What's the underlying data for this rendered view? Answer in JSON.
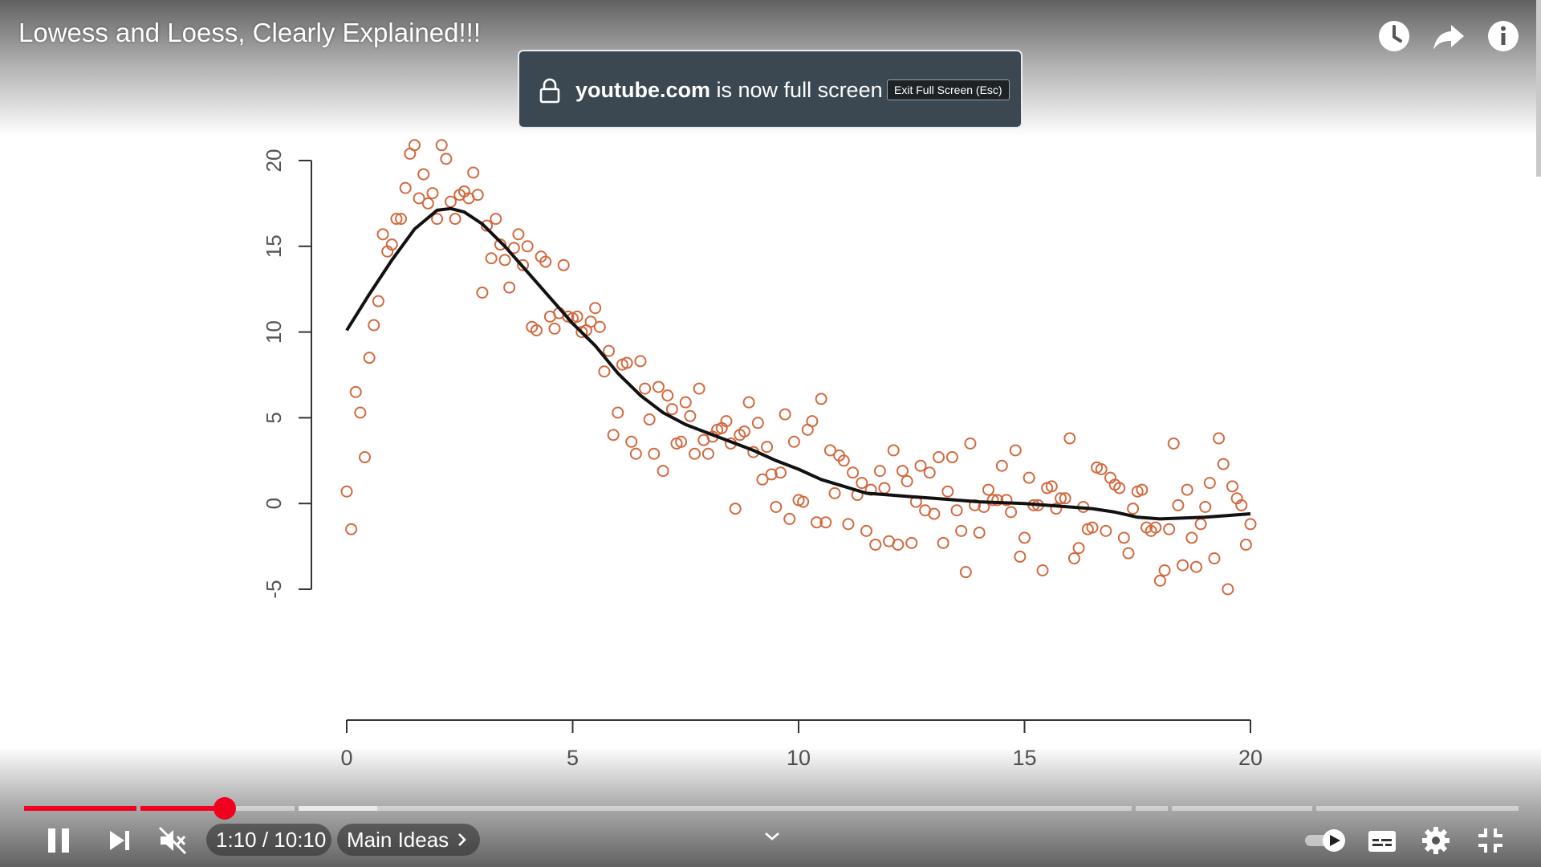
{
  "video": {
    "title": "Lowess and Loess, Clearly Explained!!!"
  },
  "top_icons": [
    "watch-later-icon",
    "share-icon",
    "info-icon"
  ],
  "fullscreen_toast": {
    "domain": "youtube.com",
    "message": " is now full screen",
    "exit_label": "Exit Full Screen (Esc)"
  },
  "controls": {
    "current_time": "1:10",
    "duration": "10:10",
    "time_display": "1:10 / 10:10",
    "chapter": "Main Ideas",
    "progress_fraction": 0.115,
    "autoplay": true
  },
  "colors": {
    "accent": "#f1001f",
    "points": "#d2693f",
    "curve": "#111111",
    "toast_bg": "#3b4852"
  },
  "chart_data": {
    "type": "scatter",
    "x_ticks": [
      0,
      5,
      10,
      15,
      20
    ],
    "y_ticks": [
      -5,
      0,
      5,
      10,
      15,
      20
    ],
    "x_tick_labels": [
      "0",
      "5",
      "10",
      "15",
      "20"
    ],
    "y_tick_labels": [
      "-5",
      "0",
      "5",
      "10",
      "15",
      "20"
    ],
    "xlim": [
      0,
      20
    ],
    "ylim": [
      -5,
      20
    ],
    "grid": false,
    "series": [
      {
        "points": [
          [
            0.0,
            0.7
          ],
          [
            0.1,
            -1.5
          ],
          [
            0.2,
            6.5
          ],
          [
            0.3,
            5.3
          ],
          [
            0.4,
            2.7
          ],
          [
            0.5,
            8.5
          ],
          [
            0.6,
            10.4
          ],
          [
            0.7,
            11.8
          ],
          [
            0.8,
            15.7
          ],
          [
            0.9,
            14.7
          ],
          [
            1.0,
            15.1
          ],
          [
            1.1,
            16.6
          ],
          [
            1.2,
            16.6
          ],
          [
            1.3,
            18.4
          ],
          [
            1.4,
            20.4
          ],
          [
            1.5,
            20.9
          ],
          [
            1.6,
            17.8
          ],
          [
            1.7,
            19.2
          ],
          [
            1.8,
            17.5
          ],
          [
            1.9,
            18.1
          ],
          [
            2.0,
            16.6
          ],
          [
            2.1,
            20.9
          ],
          [
            2.2,
            20.1
          ],
          [
            2.3,
            17.6
          ],
          [
            2.4,
            16.6
          ],
          [
            2.5,
            18.0
          ],
          [
            2.6,
            18.2
          ],
          [
            2.7,
            17.8
          ],
          [
            2.8,
            19.3
          ],
          [
            2.9,
            18.0
          ],
          [
            3.0,
            12.3
          ],
          [
            3.1,
            16.2
          ],
          [
            3.2,
            14.3
          ],
          [
            3.3,
            16.6
          ],
          [
            3.4,
            15.1
          ],
          [
            3.5,
            14.2
          ],
          [
            3.6,
            12.6
          ],
          [
            3.7,
            14.9
          ],
          [
            3.8,
            15.7
          ],
          [
            3.9,
            13.9
          ],
          [
            4.0,
            15.0
          ],
          [
            4.1,
            10.3
          ],
          [
            4.2,
            10.1
          ],
          [
            4.3,
            14.4
          ],
          [
            4.4,
            14.1
          ],
          [
            4.5,
            10.9
          ],
          [
            4.6,
            10.2
          ],
          [
            4.7,
            11.1
          ],
          [
            4.8,
            13.9
          ],
          [
            4.9,
            10.9
          ],
          [
            5.0,
            10.8
          ],
          [
            5.1,
            10.9
          ],
          [
            5.2,
            10.0
          ],
          [
            5.3,
            10.1
          ],
          [
            5.4,
            10.6
          ],
          [
            5.5,
            11.4
          ],
          [
            5.6,
            10.3
          ],
          [
            5.7,
            7.7
          ],
          [
            5.8,
            8.9
          ],
          [
            5.9,
            4.0
          ],
          [
            6.0,
            5.3
          ],
          [
            6.1,
            8.1
          ],
          [
            6.2,
            8.2
          ],
          [
            6.3,
            3.6
          ],
          [
            6.4,
            2.9
          ],
          [
            6.5,
            8.3
          ],
          [
            6.6,
            6.7
          ],
          [
            6.7,
            4.9
          ],
          [
            6.8,
            2.9
          ],
          [
            6.9,
            6.8
          ],
          [
            7.0,
            1.9
          ],
          [
            7.1,
            6.3
          ],
          [
            7.2,
            5.5
          ],
          [
            7.3,
            3.5
          ],
          [
            7.4,
            3.6
          ],
          [
            7.5,
            5.9
          ],
          [
            7.6,
            5.1
          ],
          [
            7.7,
            2.9
          ],
          [
            7.8,
            6.7
          ],
          [
            7.9,
            3.7
          ],
          [
            8.0,
            2.9
          ],
          [
            8.1,
            3.9
          ],
          [
            8.2,
            4.3
          ],
          [
            8.3,
            4.4
          ],
          [
            8.4,
            4.8
          ],
          [
            8.5,
            3.5
          ],
          [
            8.6,
            -0.3
          ],
          [
            8.7,
            4.0
          ],
          [
            8.8,
            4.2
          ],
          [
            8.9,
            5.9
          ],
          [
            9.0,
            3.0
          ],
          [
            9.1,
            4.7
          ],
          [
            9.2,
            1.4
          ],
          [
            9.3,
            3.3
          ],
          [
            9.4,
            1.7
          ],
          [
            9.5,
            -0.2
          ],
          [
            9.6,
            1.8
          ],
          [
            9.7,
            5.2
          ],
          [
            9.8,
            -0.9
          ],
          [
            9.9,
            3.6
          ],
          [
            10.0,
            0.2
          ],
          [
            10.1,
            0.1
          ],
          [
            10.2,
            4.3
          ],
          [
            10.3,
            4.8
          ],
          [
            10.4,
            -1.1
          ],
          [
            10.5,
            6.1
          ],
          [
            10.6,
            -1.1
          ],
          [
            10.7,
            3.1
          ],
          [
            10.8,
            0.6
          ],
          [
            10.9,
            2.8
          ],
          [
            11.0,
            2.5
          ],
          [
            11.1,
            -1.2
          ],
          [
            11.2,
            1.8
          ],
          [
            11.3,
            0.5
          ],
          [
            11.4,
            1.2
          ],
          [
            11.5,
            -1.6
          ],
          [
            11.6,
            0.8
          ],
          [
            11.7,
            -2.4
          ],
          [
            11.8,
            1.9
          ],
          [
            11.9,
            0.9
          ],
          [
            12.0,
            -2.2
          ],
          [
            12.1,
            3.1
          ],
          [
            12.2,
            -2.4
          ],
          [
            12.3,
            1.9
          ],
          [
            12.4,
            1.3
          ],
          [
            12.5,
            -2.3
          ],
          [
            12.6,
            0.1
          ],
          [
            12.7,
            2.2
          ],
          [
            12.8,
            -0.4
          ],
          [
            12.9,
            1.8
          ],
          [
            13.0,
            -0.6
          ],
          [
            13.1,
            2.7
          ],
          [
            13.2,
            -2.3
          ],
          [
            13.3,
            0.7
          ],
          [
            13.4,
            2.7
          ],
          [
            13.5,
            -0.4
          ],
          [
            13.6,
            -1.6
          ],
          [
            13.7,
            -4.0
          ],
          [
            13.8,
            3.5
          ],
          [
            13.9,
            -0.1
          ],
          [
            14.0,
            -1.7
          ],
          [
            14.1,
            -0.2
          ],
          [
            14.2,
            0.8
          ],
          [
            14.3,
            0.2
          ],
          [
            14.4,
            0.2
          ],
          [
            14.5,
            2.2
          ],
          [
            14.6,
            0.2
          ],
          [
            14.7,
            -0.5
          ],
          [
            14.8,
            3.1
          ],
          [
            14.9,
            -3.1
          ],
          [
            15.0,
            -2.0
          ],
          [
            15.1,
            1.5
          ],
          [
            15.2,
            -0.1
          ],
          [
            15.3,
            -0.1
          ],
          [
            15.4,
            -3.9
          ],
          [
            15.5,
            0.9
          ],
          [
            15.6,
            1.0
          ],
          [
            15.7,
            -0.3
          ],
          [
            15.8,
            0.3
          ],
          [
            15.9,
            0.3
          ],
          [
            16.0,
            3.8
          ],
          [
            16.1,
            -3.2
          ],
          [
            16.2,
            -2.6
          ],
          [
            16.3,
            -0.2
          ],
          [
            16.4,
            -1.5
          ],
          [
            16.5,
            -1.4
          ],
          [
            16.6,
            2.1
          ],
          [
            16.7,
            2.0
          ],
          [
            16.8,
            -1.6
          ],
          [
            16.9,
            1.5
          ],
          [
            17.0,
            1.1
          ],
          [
            17.1,
            0.9
          ],
          [
            17.2,
            -2.0
          ],
          [
            17.3,
            -2.9
          ],
          [
            17.4,
            -0.3
          ],
          [
            17.5,
            0.7
          ],
          [
            17.6,
            0.8
          ],
          [
            17.7,
            -1.4
          ],
          [
            17.8,
            -1.6
          ],
          [
            17.9,
            -1.4
          ],
          [
            18.0,
            -4.5
          ],
          [
            18.1,
            -3.9
          ],
          [
            18.2,
            -1.5
          ],
          [
            18.3,
            3.5
          ],
          [
            18.4,
            -0.1
          ],
          [
            18.5,
            -3.6
          ],
          [
            18.6,
            0.8
          ],
          [
            18.7,
            -2.0
          ],
          [
            18.8,
            -3.7
          ],
          [
            18.9,
            -1.2
          ],
          [
            19.0,
            -0.2
          ],
          [
            19.1,
            1.2
          ],
          [
            19.2,
            -3.2
          ],
          [
            19.3,
            3.8
          ],
          [
            19.4,
            2.3
          ],
          [
            19.5,
            -5.0
          ],
          [
            19.6,
            1.0
          ],
          [
            19.7,
            0.3
          ],
          [
            19.8,
            -0.1
          ],
          [
            19.9,
            -2.4
          ],
          [
            20.0,
            -1.2
          ]
        ]
      },
      {
        "line": [
          [
            0.0,
            10.1
          ],
          [
            0.5,
            12.2
          ],
          [
            1.0,
            14.2
          ],
          [
            1.5,
            16.0
          ],
          [
            2.0,
            17.1
          ],
          [
            2.3,
            17.2
          ],
          [
            2.6,
            17.0
          ],
          [
            3.0,
            16.3
          ],
          [
            3.5,
            15.0
          ],
          [
            4.0,
            13.5
          ],
          [
            4.5,
            12.0
          ],
          [
            5.0,
            10.5
          ],
          [
            5.5,
            9.2
          ],
          [
            6.0,
            7.6
          ],
          [
            6.5,
            6.3
          ],
          [
            7.0,
            5.3
          ],
          [
            7.5,
            4.6
          ],
          [
            8.0,
            4.1
          ],
          [
            8.5,
            3.6
          ],
          [
            9.0,
            3.1
          ],
          [
            9.5,
            2.5
          ],
          [
            10.0,
            2.0
          ],
          [
            10.5,
            1.4
          ],
          [
            11.0,
            1.0
          ],
          [
            11.5,
            0.6
          ],
          [
            12.0,
            0.5
          ],
          [
            12.5,
            0.4
          ],
          [
            13.0,
            0.3
          ],
          [
            14.0,
            0.1
          ],
          [
            15.0,
            0.0
          ],
          [
            16.0,
            -0.2
          ],
          [
            16.5,
            -0.3
          ],
          [
            17.0,
            -0.5
          ],
          [
            17.5,
            -0.8
          ],
          [
            18.0,
            -0.9
          ],
          [
            19.0,
            -0.8
          ],
          [
            20.0,
            -0.6
          ]
        ]
      }
    ]
  }
}
